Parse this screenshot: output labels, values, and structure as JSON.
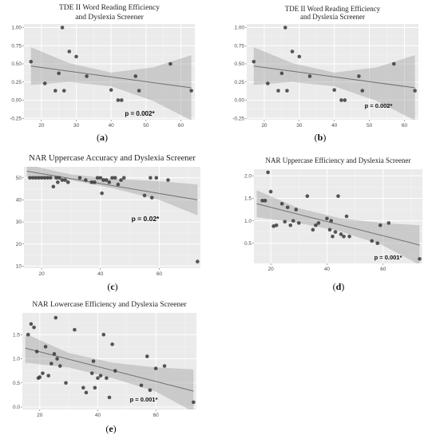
{
  "chart_data": [
    {
      "id": "a",
      "type": "scatter",
      "title": [
        "TDE II Word Reading Efficiency",
        "and Dyslexia Screener"
      ],
      "caption": "a",
      "annotation": "p = 0.002*",
      "xlim": [
        15,
        64
      ],
      "ylim": [
        -0.27,
        1.05
      ],
      "xticks": [
        20,
        30,
        40,
        50,
        60
      ],
      "yticks": [
        -0.25,
        0.0,
        0.25,
        0.5,
        0.75,
        1.0
      ],
      "ytick_labels": [
        "-0.25",
        "0.00",
        "0.25",
        "0.50",
        "0.75",
        "1.00"
      ],
      "trend": {
        "x": [
          17,
          63
        ],
        "y": [
          0.47,
          0.17
        ]
      },
      "band": {
        "x": [
          17,
          28,
          40,
          52,
          63
        ],
        "upper": [
          0.73,
          0.51,
          0.38,
          0.45,
          0.62
        ],
        "lower": [
          0.21,
          0.25,
          0.19,
          -0.01,
          -0.28
        ]
      },
      "points": [
        [
          17,
          0.53
        ],
        [
          21,
          0.23
        ],
        [
          24,
          0.13
        ],
        [
          25,
          0.37
        ],
        [
          26,
          1.0
        ],
        [
          26.5,
          0.13
        ],
        [
          28,
          0.67
        ],
        [
          30,
          0.6
        ],
        [
          33,
          0.33
        ],
        [
          40,
          0.14
        ],
        [
          42,
          0.0
        ],
        [
          43,
          0.0
        ],
        [
          47,
          0.33
        ],
        [
          48,
          0.13
        ],
        [
          57,
          0.5
        ],
        [
          63,
          0.13
        ]
      ]
    },
    {
      "id": "b",
      "type": "scatter",
      "title": [
        "TDE II Word Reading Efficiency",
        "and Dyslexia Screener"
      ],
      "caption": "b",
      "annotation": "p = 0.002*",
      "xlim": [
        15,
        64
      ],
      "ylim": [
        -0.27,
        1.05
      ],
      "xticks": [
        20,
        30,
        40,
        50,
        60
      ],
      "yticks": [
        -0.25,
        0.0,
        0.25,
        0.5,
        0.75,
        1.0
      ],
      "ytick_labels": [
        "-0.25",
        "0.00",
        "0.25",
        "0.50",
        "0.75",
        "1.00"
      ],
      "trend": {
        "x": [
          17,
          63
        ],
        "y": [
          0.47,
          0.17
        ]
      },
      "band": {
        "x": [
          17,
          28,
          40,
          52,
          63
        ],
        "upper": [
          0.73,
          0.51,
          0.38,
          0.45,
          0.62
        ],
        "lower": [
          0.21,
          0.25,
          0.19,
          -0.01,
          -0.28
        ]
      },
      "points": [
        [
          17,
          0.53
        ],
        [
          21,
          0.23
        ],
        [
          24,
          0.13
        ],
        [
          25,
          0.37
        ],
        [
          26,
          1.0
        ],
        [
          26.5,
          0.13
        ],
        [
          28,
          0.67
        ],
        [
          30,
          0.6
        ],
        [
          33,
          0.33
        ],
        [
          40,
          0.14
        ],
        [
          42,
          0.0
        ],
        [
          43,
          0.0
        ],
        [
          47,
          0.33
        ],
        [
          48,
          0.13
        ],
        [
          57,
          0.5
        ],
        [
          63,
          0.13
        ]
      ]
    },
    {
      "id": "c",
      "type": "scatter",
      "title": [
        "NAR Uppercase Accuracy and Dyslexia Screener"
      ],
      "caption": "c",
      "annotation": "p = 0.02*",
      "xlim": [
        14,
        74
      ],
      "ylim": [
        9,
        55
      ],
      "xticks": [
        20,
        40,
        60
      ],
      "yticks": [
        10,
        20,
        30,
        40,
        50
      ],
      "ytick_labels": [
        "10",
        "20",
        "30",
        "40",
        "50"
      ],
      "trend": {
        "x": [
          15,
          73
        ],
        "y": [
          53,
          40
        ]
      },
      "band": {
        "x": [
          15,
          30,
          45,
          60,
          73
        ],
        "upper": [
          56,
          51.5,
          49.5,
          48.5,
          47
        ],
        "lower": [
          50,
          49,
          45,
          40,
          33
        ]
      },
      "points": [
        [
          16,
          50
        ],
        [
          17,
          50
        ],
        [
          18,
          50
        ],
        [
          19,
          50
        ],
        [
          20,
          50
        ],
        [
          21,
          50
        ],
        [
          22,
          50
        ],
        [
          23,
          50
        ],
        [
          24,
          46
        ],
        [
          25,
          50
        ],
        [
          25.5,
          48
        ],
        [
          26,
          50
        ],
        [
          27,
          49
        ],
        [
          28,
          49
        ],
        [
          29,
          48
        ],
        [
          33,
          50
        ],
        [
          35,
          49
        ],
        [
          37,
          48
        ],
        [
          38,
          48
        ],
        [
          39,
          50
        ],
        [
          40,
          50
        ],
        [
          40.5,
          43
        ],
        [
          41,
          49
        ],
        [
          42,
          49
        ],
        [
          43,
          48
        ],
        [
          44,
          50
        ],
        [
          45,
          50
        ],
        [
          46,
          47
        ],
        [
          47,
          49
        ],
        [
          48,
          50
        ],
        [
          55,
          42
        ],
        [
          57,
          50
        ],
        [
          57.5,
          41
        ],
        [
          59,
          50
        ],
        [
          63,
          49
        ],
        [
          73,
          12
        ]
      ]
    },
    {
      "id": "d",
      "type": "scatter",
      "title": [
        "NAR Uppercase Efficiency and Dyslexia Screener"
      ],
      "caption": "d",
      "annotation": "p = 0.001*",
      "xlim": [
        14,
        74
      ],
      "ylim": [
        0.05,
        2.15
      ],
      "xticks": [
        20,
        40,
        60
      ],
      "yticks": [
        0.5,
        1.0,
        1.5,
        2.0
      ],
      "ytick_labels": [
        "0.5",
        "1.0",
        "1.5",
        "2.0"
      ],
      "trend": {
        "x": [
          15,
          73
        ],
        "y": [
          1.38,
          0.46
        ]
      },
      "band": {
        "x": [
          15,
          30,
          45,
          60,
          73
        ],
        "upper": [
          1.68,
          1.28,
          1.05,
          0.95,
          0.9
        ],
        "lower": [
          1.08,
          0.95,
          0.76,
          0.45,
          0.02
        ]
      },
      "points": [
        [
          17,
          1.45
        ],
        [
          18,
          1.45
        ],
        [
          19,
          2.08
        ],
        [
          20,
          1.65
        ],
        [
          21,
          0.88
        ],
        [
          22,
          0.9
        ],
        [
          24,
          1.38
        ],
        [
          25,
          0.98
        ],
        [
          26,
          1.3
        ],
        [
          27,
          0.9
        ],
        [
          28,
          1.0
        ],
        [
          29,
          1.25
        ],
        [
          30,
          0.95
        ],
        [
          33,
          1.55
        ],
        [
          35,
          0.8
        ],
        [
          36,
          0.9
        ],
        [
          37,
          0.95
        ],
        [
          40,
          1.05
        ],
        [
          41,
          0.8
        ],
        [
          41.5,
          1.0
        ],
        [
          42,
          0.65
        ],
        [
          43,
          0.75
        ],
        [
          44,
          1.55
        ],
        [
          45,
          0.7
        ],
        [
          46,
          0.65
        ],
        [
          47,
          1.1
        ],
        [
          48,
          0.65
        ],
        [
          56,
          0.55
        ],
        [
          58,
          0.5
        ],
        [
          59,
          0.9
        ],
        [
          62,
          0.95
        ],
        [
          73,
          0.15
        ]
      ]
    },
    {
      "id": "e",
      "type": "scatter",
      "title": [
        "NAR Lowercase Efficiency and Dyslexia Screener"
      ],
      "caption": "e",
      "annotation": "p = 0.001*",
      "xlim": [
        14,
        74
      ],
      "ylim": [
        -0.05,
        1.95
      ],
      "xticks": [
        20,
        40,
        60
      ],
      "yticks": [
        0.0,
        0.5,
        1.0,
        1.5
      ],
      "ytick_labels": [
        "0.0",
        "0.5",
        "1.0",
        "1.5"
      ],
      "trend": {
        "x": [
          15,
          73
        ],
        "y": [
          1.22,
          0.33
        ]
      },
      "band": {
        "x": [
          15,
          30,
          45,
          60,
          73
        ],
        "upper": [
          1.52,
          1.12,
          0.92,
          0.82,
          0.78
        ],
        "lower": [
          0.92,
          0.82,
          0.6,
          0.32,
          -0.1
        ]
      },
      "points": [
        [
          16,
          1.5
        ],
        [
          17,
          1.72
        ],
        [
          18,
          1.65
        ],
        [
          19,
          1.15
        ],
        [
          19.5,
          0.6
        ],
        [
          20,
          0.62
        ],
        [
          21,
          0.7
        ],
        [
          22,
          1.25
        ],
        [
          23,
          0.65
        ],
        [
          24,
          0.9
        ],
        [
          25,
          1.1
        ],
        [
          25.5,
          1.85
        ],
        [
          26,
          1.0
        ],
        [
          27,
          0.85
        ],
        [
          29,
          0.5
        ],
        [
          32,
          1.6
        ],
        [
          35,
          0.4
        ],
        [
          36,
          0.3
        ],
        [
          38,
          0.7
        ],
        [
          38.5,
          0.95
        ],
        [
          39,
          0.4
        ],
        [
          40,
          0.6
        ],
        [
          41,
          0.65
        ],
        [
          42,
          1.5
        ],
        [
          43,
          0.6
        ],
        [
          44,
          0.2
        ],
        [
          45,
          1.3
        ],
        [
          46,
          0.75
        ],
        [
          55,
          0.45
        ],
        [
          57,
          1.05
        ],
        [
          58,
          0.35
        ],
        [
          60,
          0.8
        ],
        [
          63,
          0.85
        ],
        [
          73,
          0.1
        ]
      ]
    }
  ]
}
